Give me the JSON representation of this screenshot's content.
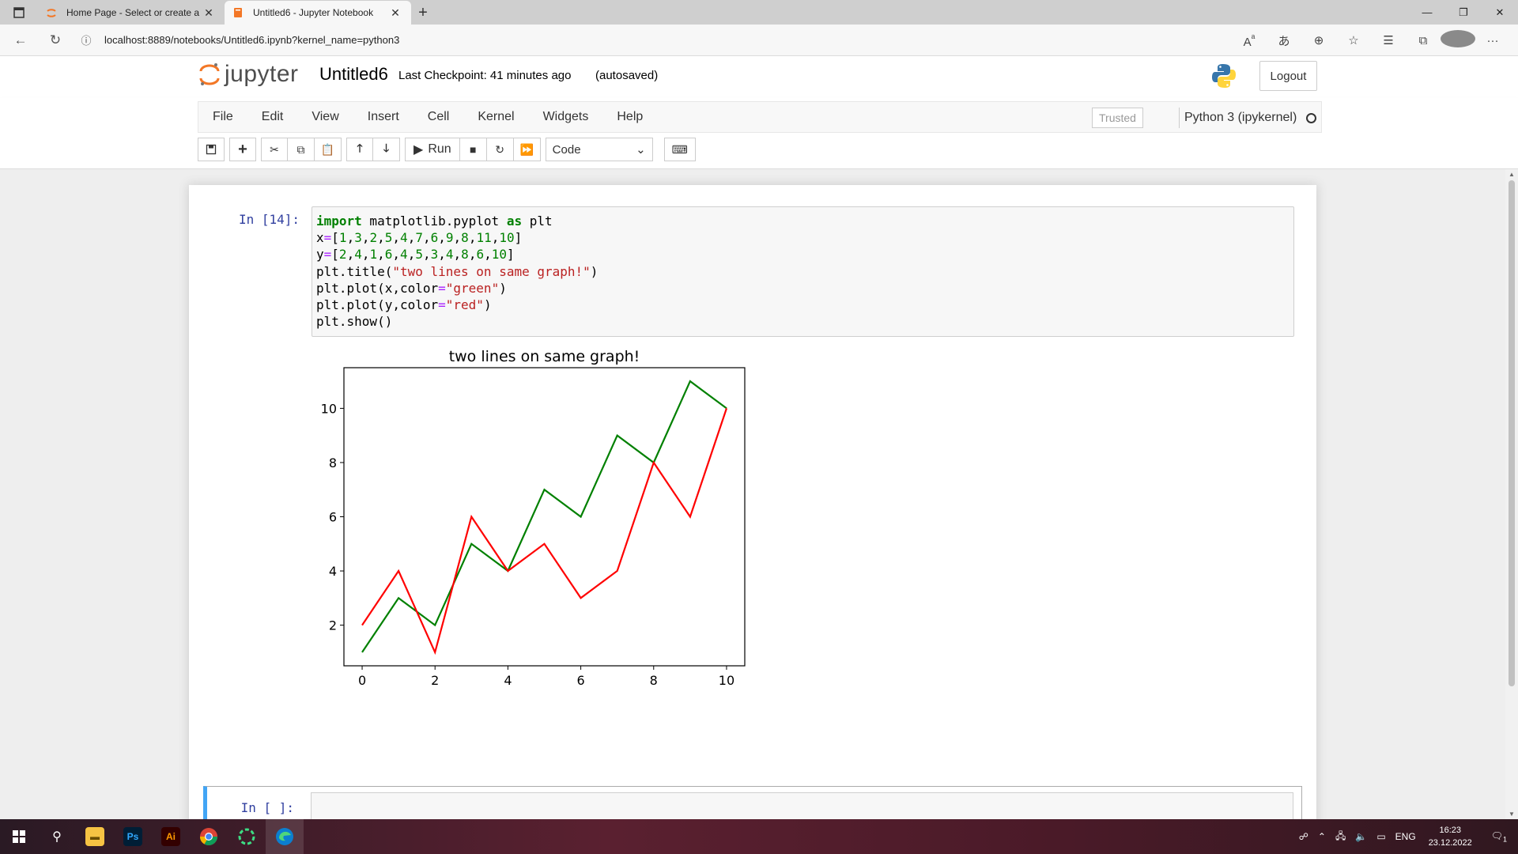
{
  "browser": {
    "tabs": [
      {
        "title": "Home Page - Select or create a n",
        "active": false
      },
      {
        "title": "Untitled6 - Jupyter Notebook",
        "active": true
      }
    ],
    "url": "localhost:8889/notebooks/Untitled6.ipynb?kernel_name=python3"
  },
  "header": {
    "logo_text": "jupyter",
    "notebook_name": "Untitled6",
    "checkpoint": "Last Checkpoint: 41 minutes ago",
    "autosave": "(autosaved)",
    "logout_label": "Logout"
  },
  "menubar": {
    "items": [
      "File",
      "Edit",
      "View",
      "Insert",
      "Cell",
      "Kernel",
      "Widgets",
      "Help"
    ],
    "trusted": "Trusted",
    "kernel": "Python 3 (ipykernel)"
  },
  "toolbar": {
    "run_label": "Run",
    "cell_type": "Code"
  },
  "cells": [
    {
      "prompt": "In [14]:",
      "code_lines": [
        "import matplotlib.pyplot as plt",
        "x=[1,3,2,5,4,7,6,9,8,11,10]",
        "y=[2,4,1,6,4,5,3,4,8,6,10]",
        "plt.title(\"two lines on same graph!\")",
        "plt.plot(x,color=\"green\")",
        "plt.plot(y,color=\"red\")",
        "plt.show()"
      ]
    },
    {
      "prompt": "In [ ]:",
      "code_lines": []
    }
  ],
  "chart_data": {
    "type": "line",
    "title": "two lines on same graph!",
    "xlabel": "",
    "ylabel": "",
    "x": [
      0,
      1,
      2,
      3,
      4,
      5,
      6,
      7,
      8,
      9,
      10
    ],
    "series": [
      {
        "color": "#008000",
        "values": [
          1,
          3,
          2,
          5,
          4,
          7,
          6,
          9,
          8,
          11,
          10
        ]
      },
      {
        "color": "#ff0000",
        "values": [
          2,
          4,
          1,
          6,
          4,
          5,
          3,
          4,
          8,
          6,
          10
        ]
      }
    ],
    "xlim": [
      -0.5,
      10.5
    ],
    "ylim": [
      0.5,
      11.5
    ],
    "xticks": [
      0,
      2,
      4,
      6,
      8,
      10
    ],
    "yticks": [
      2,
      4,
      6,
      8,
      10
    ],
    "grid": false
  },
  "taskbar": {
    "lang": "ENG",
    "time": "16:23",
    "date": "23.12.2022",
    "notifications": "1"
  }
}
